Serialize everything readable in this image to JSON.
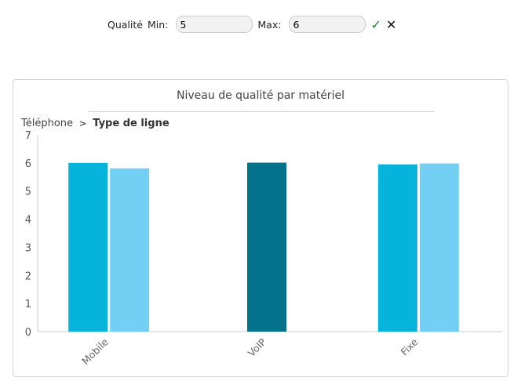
{
  "filter": {
    "label": "Qualité",
    "min_label": "Min:",
    "min_value": "5",
    "max_label": "Max:",
    "max_value": "6",
    "confirm_icon": "check-icon",
    "cancel_icon": "close-icon"
  },
  "breadcrumb": {
    "parent": "Téléphone",
    "current": "Type de ligne",
    "separator_icon": "chevron-right-icon"
  },
  "chart_data": {
    "type": "bar",
    "title": "Niveau de qualité par matériel",
    "categories": [
      "Mobile",
      "VoIP",
      "Fixe"
    ],
    "ylim": [
      0,
      7
    ],
    "yticks": [
      0,
      1,
      2,
      3,
      4,
      5,
      6,
      7
    ],
    "grid": false,
    "bars": [
      [
        {
          "value": 6.0,
          "color": "#05b3db"
        },
        {
          "value": 5.81,
          "color": "#74cff4"
        }
      ],
      [
        {
          "value": 6.01,
          "color": "#04728a"
        }
      ],
      [
        {
          "value": 5.95,
          "color": "#05b3db"
        },
        {
          "value": 5.98,
          "color": "#74cff4"
        }
      ]
    ]
  }
}
